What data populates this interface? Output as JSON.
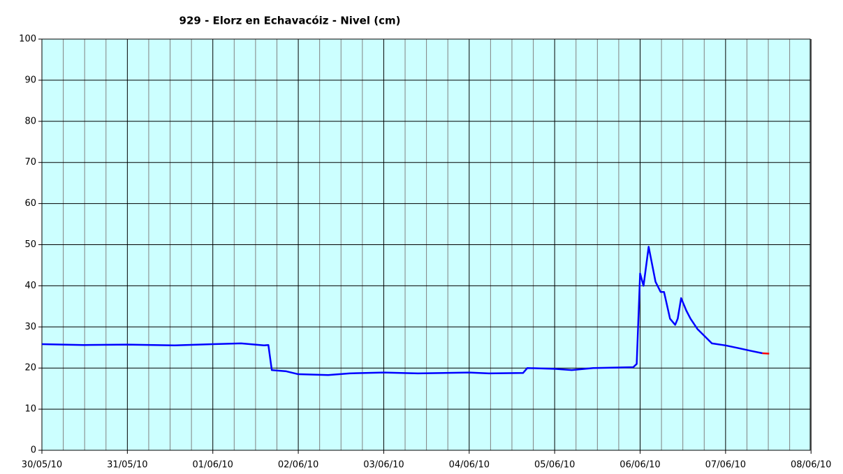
{
  "chart_data": {
    "type": "line",
    "title": "929 - Elorz en Echavacóiz - Nivel (cm)",
    "x": [
      40328,
      40328.49,
      40329,
      40329.55,
      40330,
      40330.33,
      40330.6,
      40330.65,
      40330.69,
      40330.86,
      40331,
      40331.35,
      40331.6,
      40332,
      40332.4,
      40333,
      40333.23,
      40333.63,
      40333.68,
      40334,
      40334.2,
      40334.45,
      40334.92,
      40334.96,
      40335,
      40335.04,
      40335.1,
      40335.18,
      40335.24,
      40335.28,
      40335.35,
      40335.41,
      40335.44,
      40335.48,
      40335.51,
      40335.54,
      40335.59,
      40335.67,
      40335.84,
      40336,
      40336.16,
      40336.29,
      40336.43,
      40336.51
    ],
    "series": [
      {
        "color": "#0000ff",
        "values": [
          25.8,
          25.6,
          25.7,
          25.5,
          25.8,
          26.0,
          25.5,
          25.6,
          19.5,
          19.2,
          18.5,
          18.3,
          18.7,
          18.9,
          18.7,
          18.9,
          18.7,
          18.8,
          20.0,
          19.8,
          19.5,
          20.0,
          20.2,
          21,
          43,
          40,
          49.5,
          41,
          38.5,
          38.5,
          32,
          30.5,
          32,
          37,
          35.5,
          34,
          32,
          29.5,
          26,
          25.5,
          24.8,
          24.2,
          23.6,
          null
        ]
      },
      {
        "color": "#ff0000",
        "values": [
          null,
          null,
          null,
          null,
          null,
          null,
          null,
          null,
          null,
          null,
          null,
          null,
          null,
          null,
          null,
          null,
          null,
          null,
          null,
          null,
          null,
          null,
          null,
          null,
          null,
          null,
          null,
          null,
          null,
          null,
          null,
          null,
          null,
          null,
          null,
          null,
          null,
          null,
          null,
          null,
          null,
          null,
          23.6,
          23.5
        ]
      }
    ],
    "xlim": [
      40328,
      40336.99
    ],
    "xticks": [
      {
        "value": 40328,
        "label": "30/05/10"
      },
      {
        "value": 40329,
        "label": "31/05/10"
      },
      {
        "value": 40330,
        "label": "01/06/10"
      },
      {
        "value": 40331,
        "label": "02/06/10"
      },
      {
        "value": 40332,
        "label": "03/06/10"
      },
      {
        "value": 40333,
        "label": "04/06/10"
      },
      {
        "value": 40334,
        "label": "05/06/10"
      },
      {
        "value": 40335,
        "label": "06/06/10"
      },
      {
        "value": 40336,
        "label": "07/06/10"
      },
      {
        "value": 40337,
        "label": "08/06/10"
      }
    ],
    "xminorticks": [
      40328.25,
      40328.5,
      40328.75,
      40329.25,
      40329.5,
      40329.75,
      40330.25,
      40330.5,
      40330.75,
      40331.25,
      40331.5,
      40331.75,
      40332.25,
      40332.5,
      40332.75,
      40333.25,
      40333.5,
      40333.75,
      40334.25,
      40334.5,
      40334.75,
      40335.25,
      40335.5,
      40335.75,
      40336.25,
      40336.5,
      40336.75
    ],
    "ylim": [
      0,
      100
    ],
    "yticks": [
      0,
      10,
      20,
      30,
      40,
      50,
      60,
      70,
      80,
      90,
      100
    ],
    "grid": true,
    "plot_background": "#ccffff"
  }
}
